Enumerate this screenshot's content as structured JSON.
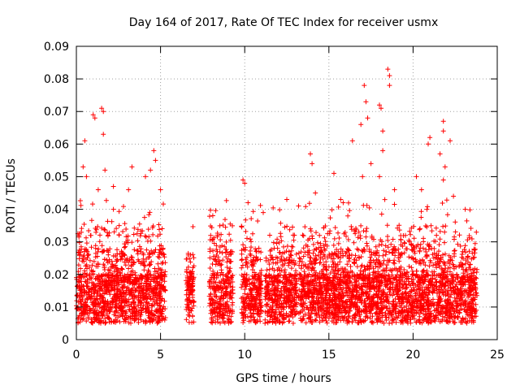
{
  "chart_data": {
    "type": "scatter",
    "title": "Day 164 of 2017, Rate Of TEC Index for receiver usmx",
    "xlabel": "GPS time / hours",
    "ylabel": "ROTI / TECUs",
    "xlim": [
      0,
      25
    ],
    "ylim": [
      0,
      0.09
    ],
    "xticks": [
      0,
      5,
      10,
      15,
      20,
      25
    ],
    "yticks": [
      0,
      0.01,
      0.02,
      0.03,
      0.04,
      0.05,
      0.06,
      0.07,
      0.08,
      0.09
    ],
    "xtick_labels": [
      "0",
      "5",
      "10",
      "15",
      "20",
      "25"
    ],
    "ytick_labels": [
      "0",
      "0.01",
      "0.02",
      "0.03",
      "0.04",
      "0.05",
      "0.06",
      "0.07",
      "0.08",
      "0.09"
    ],
    "grid": true,
    "marker": "+",
    "marker_color": "#ff0000",
    "data_coverage_hours": [
      [
        0,
        5.3
      ],
      [
        6.5,
        7.0
      ],
      [
        7.9,
        9.3
      ],
      [
        9.8,
        11.0
      ],
      [
        11.2,
        13.1
      ],
      [
        13.2,
        23.8
      ]
    ],
    "points": [
      [
        0.5,
        0.061
      ],
      [
        1.0,
        0.069
      ],
      [
        1.1,
        0.068
      ],
      [
        1.5,
        0.071
      ],
      [
        1.6,
        0.07
      ],
      [
        1.6,
        0.063
      ],
      [
        0.4,
        0.053
      ],
      [
        0.6,
        0.05
      ],
      [
        1.3,
        0.046
      ],
      [
        1.7,
        0.052
      ],
      [
        2.2,
        0.047
      ],
      [
        3.1,
        0.046
      ],
      [
        3.3,
        0.053
      ],
      [
        4.6,
        0.058
      ],
      [
        4.7,
        0.055
      ],
      [
        4.4,
        0.052
      ],
      [
        4.1,
        0.05
      ],
      [
        5.0,
        0.046
      ],
      [
        9.9,
        0.049
      ],
      [
        10.0,
        0.048
      ],
      [
        10.2,
        0.042
      ],
      [
        11.1,
        0.039
      ],
      [
        12.5,
        0.043
      ],
      [
        13.2,
        0.041
      ],
      [
        13.9,
        0.057
      ],
      [
        14.0,
        0.054
      ],
      [
        14.2,
        0.045
      ],
      [
        15.3,
        0.051
      ],
      [
        15.7,
        0.043
      ],
      [
        16.4,
        0.061
      ],
      [
        16.9,
        0.066
      ],
      [
        17.1,
        0.078
      ],
      [
        17.2,
        0.073
      ],
      [
        17.3,
        0.068
      ],
      [
        17.0,
        0.05
      ],
      [
        17.5,
        0.054
      ],
      [
        18.0,
        0.072
      ],
      [
        18.1,
        0.071
      ],
      [
        18.2,
        0.064
      ],
      [
        18.2,
        0.058
      ],
      [
        18.0,
        0.05
      ],
      [
        18.5,
        0.083
      ],
      [
        18.6,
        0.081
      ],
      [
        18.6,
        0.078
      ],
      [
        18.9,
        0.046
      ],
      [
        20.2,
        0.05
      ],
      [
        20.5,
        0.046
      ],
      [
        20.9,
        0.06
      ],
      [
        21.0,
        0.062
      ],
      [
        21.8,
        0.067
      ],
      [
        21.8,
        0.064
      ],
      [
        21.6,
        0.057
      ],
      [
        22.2,
        0.061
      ],
      [
        21.9,
        0.053
      ],
      [
        21.8,
        0.049
      ],
      [
        22.4,
        0.044
      ],
      [
        23.1,
        0.04
      ]
    ]
  }
}
